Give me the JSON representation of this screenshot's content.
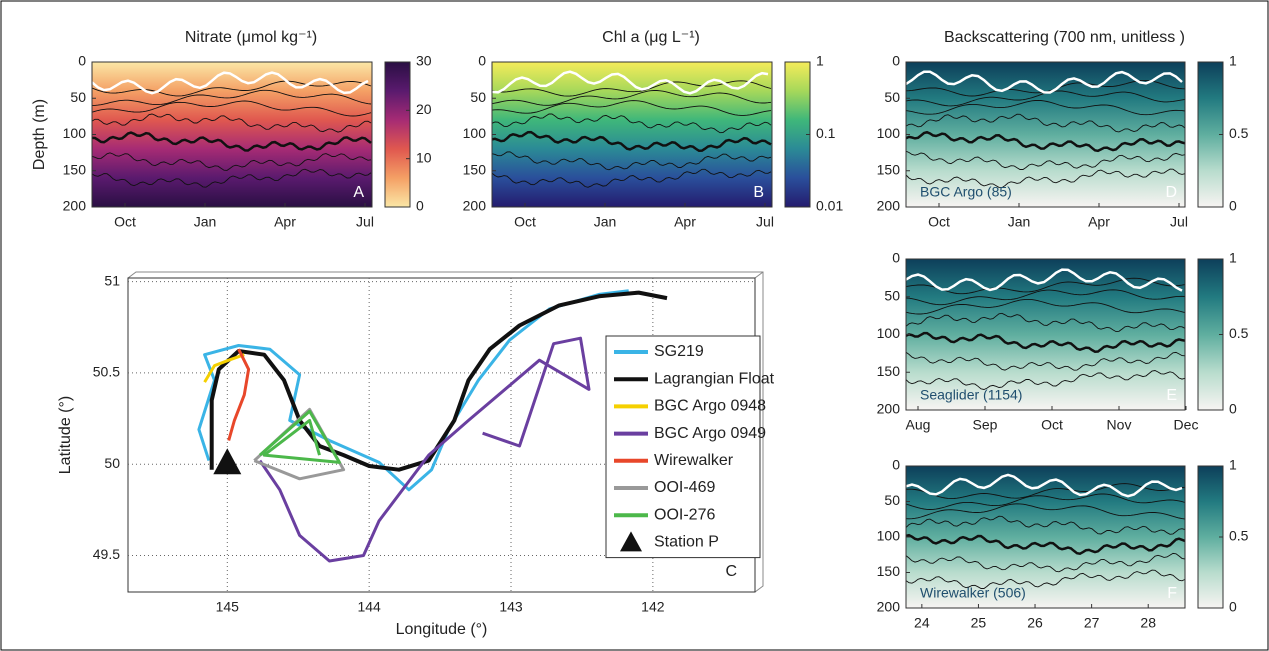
{
  "chart_data": [
    {
      "type": "heatmap",
      "title": "Nitrate (μmol kg⁻¹)",
      "ylabel": "Depth (m)",
      "panel_label": "A",
      "ylim": [
        200,
        0
      ],
      "yticks": [
        0,
        50,
        100,
        150,
        200
      ],
      "categories": [
        "Oct",
        "Jan",
        "Apr",
        "Jul"
      ],
      "colorbar": {
        "lim": [
          0,
          30
        ],
        "ticks": [
          0,
          10,
          20,
          30
        ],
        "colors": [
          "#fbe7a6",
          "#f4a065",
          "#e0584f",
          "#a62b74",
          "#5a1a6e",
          "#2a0f43"
        ]
      }
    },
    {
      "type": "heatmap",
      "title": "Chl a (μg L⁻¹)",
      "panel_label": "B",
      "ylim": [
        200,
        0
      ],
      "yticks": [
        0,
        50,
        100,
        150,
        200
      ],
      "categories": [
        "Oct",
        "Jan",
        "Apr",
        "Jul"
      ],
      "colorbar": {
        "lim": [
          0.01,
          1
        ],
        "ticks": [
          0.01,
          0.1,
          1
        ],
        "log": true,
        "colors": [
          "#241b6e",
          "#2a4f9b",
          "#2b8a96",
          "#3fb77a",
          "#a6d85a",
          "#f5ec5a"
        ]
      }
    },
    {
      "type": "heatmap",
      "title": "Backscattering (700 nm, unitless )",
      "panel_label": "D",
      "annotation": "BGC Argo (85)",
      "ylim": [
        200,
        0
      ],
      "yticks": [
        0,
        50,
        100,
        150,
        200
      ],
      "categories": [
        "Oct",
        "Jan",
        "Apr",
        "Jul"
      ],
      "colorbar": {
        "lim": [
          0,
          1
        ],
        "ticks": [
          0,
          0.5,
          1
        ],
        "colors": [
          "#f7f4f2",
          "#b8dccd",
          "#5fae9f",
          "#227a80",
          "#0d3f5a"
        ]
      }
    },
    {
      "type": "heatmap",
      "panel_label": "E",
      "annotation": "Seaglider (1154)",
      "ylim": [
        200,
        0
      ],
      "yticks": [
        0,
        50,
        100,
        150,
        200
      ],
      "categories": [
        "Aug",
        "Sep",
        "Oct",
        "Nov",
        "Dec"
      ],
      "colorbar": {
        "lim": [
          0,
          1
        ],
        "ticks": [
          0,
          0.5,
          1
        ],
        "colors": [
          "#f7f4f2",
          "#b8dccd",
          "#5fae9f",
          "#227a80",
          "#0d3f5a"
        ]
      }
    },
    {
      "type": "heatmap",
      "panel_label": "F",
      "annotation": "Wirewalker (506)",
      "ylim": [
        200,
        0
      ],
      "yticks": [
        0,
        50,
        100,
        150,
        200
      ],
      "xlim": [
        23.72,
        28.65
      ],
      "xticks": [
        24,
        25,
        26,
        27,
        28
      ],
      "colorbar": {
        "lim": [
          0,
          1
        ],
        "ticks": [
          0,
          0.5,
          1
        ],
        "colors": [
          "#f7f4f2",
          "#b8dccd",
          "#5fae9f",
          "#227a80",
          "#0d3f5a"
        ]
      }
    },
    {
      "type": "line",
      "panel_label": "C",
      "xlabel": "Longitude (°)",
      "ylabel": "Latitude (°)",
      "xlim": [
        145.7,
        141.28
      ],
      "ylim": [
        49.3,
        51.02
      ],
      "xticks": [
        145,
        144,
        143,
        142
      ],
      "yticks": [
        49.5,
        50,
        50.5,
        51
      ],
      "grid": true,
      "series": [
        {
          "name": "SG219",
          "color": "#3ab4e6",
          "x": [
            145.13,
            145.2,
            145.09,
            145.16,
            144.92,
            144.7,
            144.49,
            144.56,
            144.28,
            143.93,
            143.72,
            143.56,
            143.44,
            143.23,
            143.01,
            142.73,
            142.38,
            142.17
          ],
          "values": [
            50.02,
            50.19,
            50.46,
            50.6,
            50.65,
            50.63,
            50.49,
            50.24,
            50.13,
            50.01,
            49.86,
            49.97,
            50.19,
            50.46,
            50.68,
            50.85,
            50.93,
            50.95
          ]
        },
        {
          "name": "Lagrangian Float",
          "color": "#111111",
          "x": [
            145.11,
            145.11,
            145.06,
            144.92,
            144.74,
            144.6,
            144.49,
            144.35,
            144.18,
            144.0,
            143.79,
            143.58,
            143.4,
            143.3,
            143.15,
            142.94,
            142.66,
            142.38,
            142.1,
            141.9
          ],
          "values": [
            49.97,
            50.35,
            50.52,
            50.62,
            50.6,
            50.46,
            50.24,
            50.1,
            50.05,
            49.99,
            49.97,
            50.02,
            50.24,
            50.46,
            50.63,
            50.76,
            50.87,
            50.92,
            50.94,
            50.91
          ]
        },
        {
          "name": "BGC Argo 0948",
          "color": "#f5d000",
          "x": [
            145.16,
            145.09,
            144.99,
            144.88
          ],
          "values": [
            50.45,
            50.54,
            50.57,
            50.6
          ]
        },
        {
          "name": "BGC Argo 0949",
          "color": "#6a3fa0",
          "x": [
            143.2,
            142.94,
            142.7,
            142.51,
            142.45,
            142.8,
            143.3,
            143.58,
            143.93,
            144.04,
            144.28,
            144.49,
            144.63,
            144.77
          ],
          "values": [
            50.17,
            50.1,
            50.66,
            50.69,
            50.41,
            50.57,
            50.24,
            50.05,
            49.69,
            49.5,
            49.47,
            49.61,
            49.86,
            50.02
          ]
        },
        {
          "name": "Wirewalker",
          "color": "#e8472a",
          "x": [
            144.92,
            144.85,
            144.88,
            144.95,
            144.99
          ],
          "values": [
            50.63,
            50.52,
            50.38,
            50.24,
            50.13
          ]
        },
        {
          "name": "OOI-469",
          "color": "#999999",
          "x": [
            144.81,
            144.42,
            144.18,
            144.49,
            144.81
          ],
          "values": [
            50.02,
            50.3,
            49.97,
            49.92,
            50.02
          ]
        },
        {
          "name": "OOI-276",
          "color": "#4cb84a",
          "x": [
            144.77,
            144.42,
            144.21,
            144.74,
            144.42,
            144.35
          ],
          "values": [
            50.05,
            50.29,
            50.01,
            50.05,
            50.24,
            50.05
          ]
        },
        {
          "name": "Station P",
          "color": "#111111",
          "marker": "triangle",
          "x": [
            145
          ],
          "values": [
            50
          ]
        }
      ]
    }
  ]
}
